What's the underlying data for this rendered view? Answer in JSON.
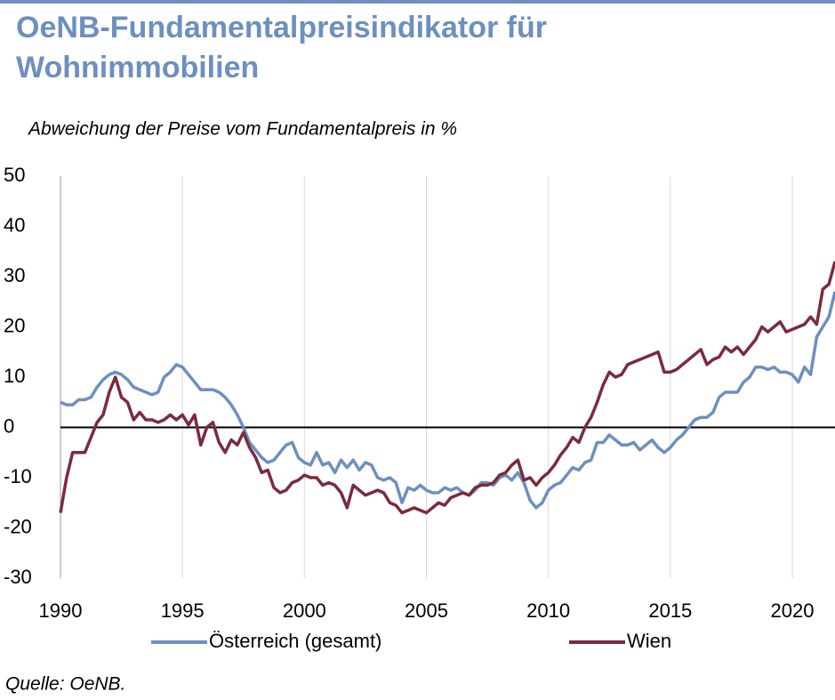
{
  "chart_data": {
    "type": "line",
    "title": "OeNB-Fundamentalpreisindikator für Wohnimmobilien",
    "title_lines": [
      "OeNB-Fundamentalpreisindikator für",
      "Wohnimmobilien"
    ],
    "subtitle": "Abweichung der Preise vom Fundamentalpreis in %",
    "source": "Quelle: OeNB.",
    "x": [
      1990,
      1990.25,
      1990.5,
      1990.75,
      1991,
      1991.25,
      1991.5,
      1991.75,
      1992,
      1992.25,
      1992.5,
      1992.75,
      1993,
      1993.25,
      1993.5,
      1993.75,
      1994,
      1994.25,
      1994.5,
      1994.75,
      1995,
      1995.25,
      1995.5,
      1995.75,
      1996,
      1996.25,
      1996.5,
      1996.75,
      1997,
      1997.25,
      1997.5,
      1997.75,
      1998,
      1998.25,
      1998.5,
      1998.75,
      1999,
      1999.25,
      1999.5,
      1999.75,
      2000,
      2000.25,
      2000.5,
      2000.75,
      2001,
      2001.25,
      2001.5,
      2001.75,
      2002,
      2002.25,
      2002.5,
      2002.75,
      2003,
      2003.25,
      2003.5,
      2003.75,
      2004,
      2004.25,
      2004.5,
      2004.75,
      2005,
      2005.25,
      2005.5,
      2005.75,
      2006,
      2006.25,
      2006.5,
      2006.75,
      2007,
      2007.25,
      2007.5,
      2007.75,
      2008,
      2008.25,
      2008.5,
      2008.75,
      2009,
      2009.25,
      2009.5,
      2009.75,
      2010,
      2010.25,
      2010.5,
      2010.75,
      2011,
      2011.25,
      2011.5,
      2011.75,
      2012,
      2012.25,
      2012.5,
      2012.75,
      2013,
      2013.25,
      2013.5,
      2013.75,
      2014,
      2014.25,
      2014.5,
      2014.75,
      2015,
      2015.25,
      2015.5,
      2015.75,
      2016,
      2016.25,
      2016.5,
      2016.75,
      2017,
      2017.25,
      2017.5,
      2017.75,
      2018,
      2018.25,
      2018.5,
      2018.75,
      2019,
      2019.25,
      2019.5,
      2019.75,
      2020,
      2020.25,
      2020.5,
      2020.75,
      2021,
      2021.25,
      2021.5,
      2021.75
    ],
    "series": [
      {
        "name": "Österreich (gesamt)",
        "color": "#6d8fc0",
        "values": [
          5,
          4.5,
          4.5,
          5.5,
          5.5,
          6,
          8,
          9.5,
          10.5,
          11,
          10.5,
          9.5,
          8,
          7.5,
          7,
          6.5,
          7,
          10,
          11,
          12.5,
          12,
          10.5,
          9,
          7.5,
          7.5,
          7.5,
          7,
          6,
          4.5,
          2.5,
          0,
          -3,
          -4.5,
          -6,
          -7,
          -6.5,
          -5,
          -3.5,
          -3,
          -6,
          -7,
          -7.5,
          -5,
          -7.5,
          -7,
          -9,
          -6.5,
          -8,
          -6.5,
          -8.5,
          -7,
          -7.5,
          -10,
          -10.5,
          -10,
          -11,
          -15,
          -12,
          -12.5,
          -11.5,
          -12.5,
          -13,
          -13,
          -12,
          -12.5,
          -12,
          -13,
          -13.5,
          -12.5,
          -11,
          -11,
          -11.5,
          -10,
          -9.5,
          -10.5,
          -9,
          -11,
          -14.5,
          -16,
          -15,
          -12.5,
          -11.5,
          -11,
          -9.5,
          -8,
          -8.5,
          -7,
          -6.5,
          -3,
          -3,
          -1.5,
          -2.5,
          -3.5,
          -3.5,
          -3,
          -4.5,
          -3.5,
          -2.5,
          -4,
          -5,
          -4,
          -2.5,
          -1.5,
          0,
          1.5,
          2,
          2,
          3,
          6,
          7,
          7,
          7,
          9,
          10,
          12,
          12,
          11.5,
          12,
          11,
          11,
          10.5,
          9,
          12,
          10.5,
          18,
          20,
          22,
          27
        ]
      },
      {
        "name": "Wien",
        "color": "#7b2a3e",
        "values": [
          -17,
          -10,
          -5,
          -5,
          -5,
          -2,
          1,
          2.5,
          7,
          10,
          6,
          5,
          1.5,
          3,
          1.5,
          1.5,
          1,
          1.5,
          2.5,
          1.5,
          2.5,
          0.5,
          2.5,
          -3.5,
          0,
          1,
          -3,
          -5,
          -2.5,
          -3.5,
          -1,
          -4,
          -6,
          -9,
          -8.5,
          -12,
          -13,
          -12.5,
          -11,
          -10.5,
          -9.5,
          -10,
          -10,
          -11.5,
          -11,
          -11.5,
          -13,
          -16,
          -11.5,
          -12.5,
          -13.5,
          -13,
          -12.5,
          -13,
          -15,
          -15.5,
          -17,
          -16.5,
          -16,
          -16.5,
          -17,
          -16,
          -15,
          -15.5,
          -14,
          -13.5,
          -13,
          -13.5,
          -12,
          -11.5,
          -11.5,
          -11,
          -9.5,
          -9,
          -7.5,
          -6.5,
          -10.5,
          -10,
          -11.5,
          -10,
          -9,
          -7.5,
          -5.5,
          -4,
          -2,
          -3,
          0,
          2,
          5,
          8.5,
          11,
          10,
          10.5,
          12.5,
          13,
          13.5,
          14,
          14.5,
          15,
          11,
          11,
          11.5,
          12.5,
          13.5,
          14.5,
          15.5,
          12.5,
          13.5,
          14,
          16,
          15,
          16,
          14.5,
          16,
          17.5,
          20,
          19,
          20,
          21,
          19,
          19.5,
          20,
          20.5,
          22,
          20.5,
          27.5,
          28.5,
          33
        ]
      }
    ],
    "xlim": [
      1990,
      2021.75
    ],
    "xticks": [
      1990,
      1995,
      2000,
      2005,
      2010,
      2015,
      2020
    ],
    "ylim": [
      -30,
      50
    ],
    "yticks": [
      -30,
      -20,
      -10,
      0,
      10,
      20,
      30,
      40,
      50
    ],
    "grid": "x"
  }
}
